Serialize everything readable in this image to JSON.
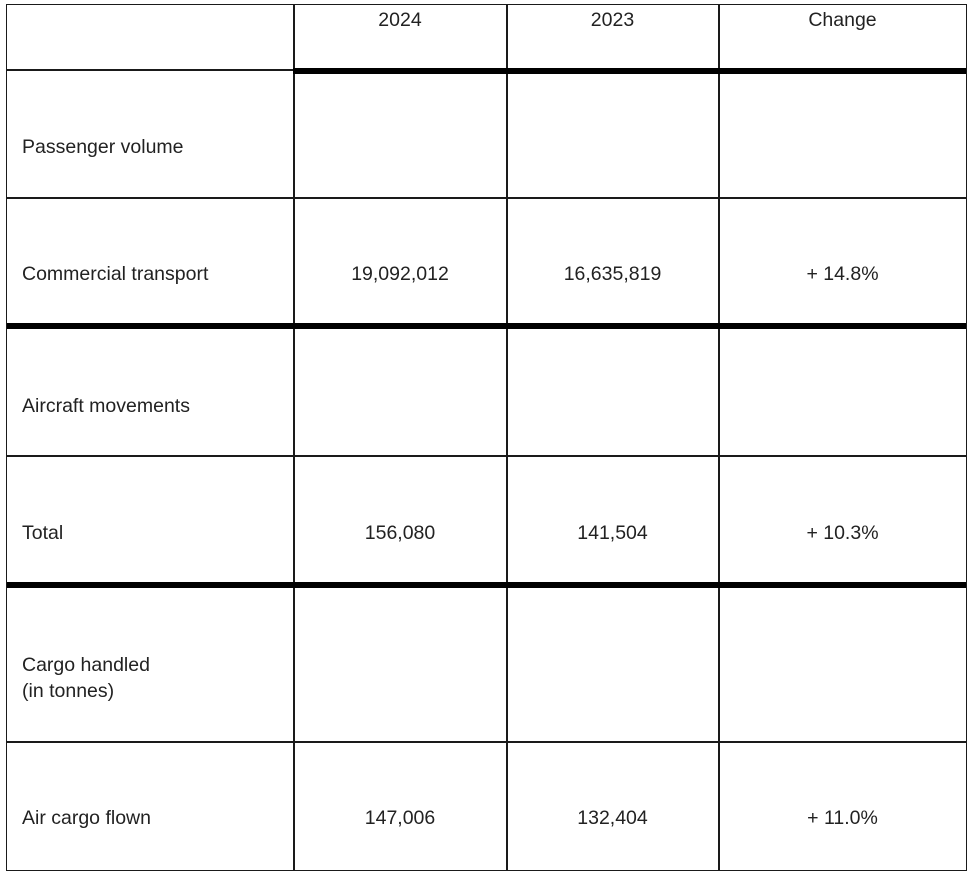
{
  "header": {
    "col_2024": "2024",
    "col_2023": "2023",
    "col_change": "Change"
  },
  "rows": [
    {
      "label": "Passenger volume",
      "v2024": "",
      "v2023": "",
      "change": ""
    },
    {
      "label": "Commercial transport",
      "v2024": "19,092,012",
      "v2023": "16,635,819",
      "change": "+ 14.8%"
    },
    {
      "label": "Aircraft movements",
      "v2024": "",
      "v2023": "",
      "change": ""
    },
    {
      "label": "Total",
      "v2024": "156,080",
      "v2023": "141,504",
      "change": "+ 10.3%"
    },
    {
      "label_line1": "Cargo handled",
      "label_line2": "(in tonnes)",
      "v2024": "",
      "v2023": "",
      "change": ""
    },
    {
      "label": "Air cargo flown",
      "v2024": "147,006",
      "v2023": "132,404",
      "change": "+ 11.0%"
    }
  ]
}
